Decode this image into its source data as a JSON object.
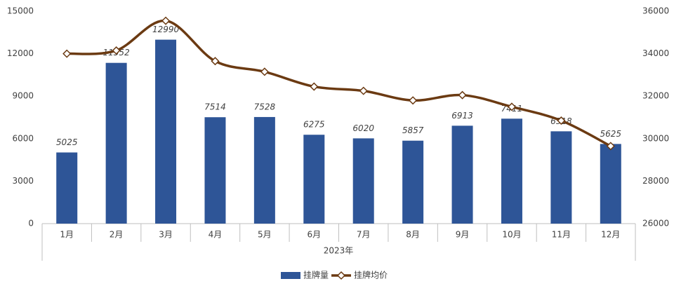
{
  "chart_data": {
    "type": "bar-line",
    "categories": [
      "1月",
      "2月",
      "3月",
      "4月",
      "5月",
      "6月",
      "7月",
      "8月",
      "9月",
      "10月",
      "11月",
      "12月"
    ],
    "xlabel": "2023年",
    "series": [
      {
        "name": "挂牌量",
        "type": "bar",
        "color": "#2e5597",
        "values": [
          5025,
          11352,
          12990,
          7514,
          7528,
          6275,
          6020,
          5857,
          6913,
          7411,
          6518,
          5625
        ]
      },
      {
        "name": "挂牌均价",
        "type": "line",
        "axis": "y2",
        "color": "#6b3a12",
        "values": [
          34000,
          34150,
          35550,
          33650,
          33150,
          32450,
          32250,
          31800,
          32050,
          31500,
          30850,
          29650
        ]
      }
    ],
    "ylim": [
      0,
      15000
    ],
    "yticks": [
      0,
      3000,
      6000,
      9000,
      12000,
      15000
    ],
    "y2lim": [
      26000,
      36000
    ],
    "y2ticks": [
      26000,
      28000,
      30000,
      32000,
      34000,
      36000
    ],
    "legend": "bottom"
  }
}
